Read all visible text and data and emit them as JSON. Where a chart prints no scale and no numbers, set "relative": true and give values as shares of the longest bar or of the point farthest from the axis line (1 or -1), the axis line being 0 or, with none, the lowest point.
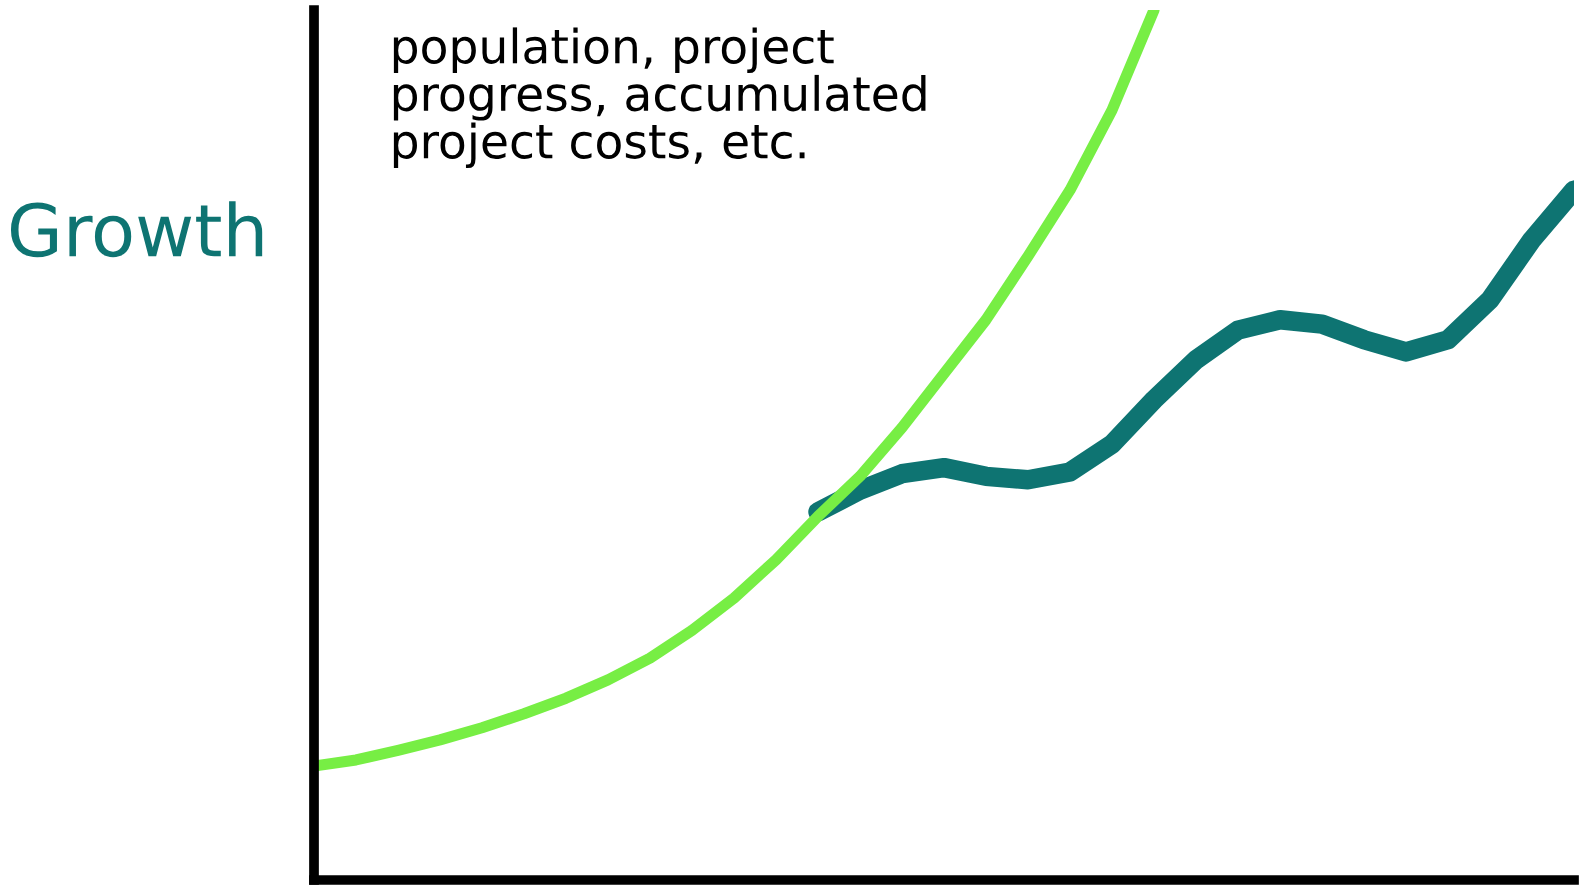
{
  "chart_data": {
    "type": "line",
    "relative": true,
    "ylabel": "Growth",
    "annotations": [
      "population, project\nprogress, accumulated\nproject costs, etc."
    ],
    "categories": [
      null,
      null,
      null,
      null,
      null,
      null,
      null,
      null,
      null,
      null,
      null,
      null,
      null,
      null,
      null,
      null,
      null,
      null,
      null,
      null,
      null,
      null,
      null,
      null,
      null,
      null,
      null,
      null,
      null,
      null,
      null
    ],
    "series": [
      {
        "color": "#0e7472",
        "values": [
          null,
          null,
          null,
          null,
          null,
          null,
          null,
          null,
          null,
          null,
          null,
          null,
          0.423,
          0.448,
          0.467,
          0.474,
          0.464,
          0.46,
          0.469,
          0.501,
          0.552,
          0.598,
          0.632,
          0.644,
          0.639,
          0.621,
          0.607,
          0.621,
          0.667,
          0.736,
          0.793
        ]
      },
      {
        "color": "#77ee44",
        "values": [
          0.131,
          0.138,
          0.149,
          0.161,
          0.175,
          0.191,
          0.209,
          0.23,
          0.255,
          0.287,
          0.324,
          0.368,
          0.418,
          0.464,
          0.52,
          0.582,
          0.644,
          0.717,
          0.793,
          0.885,
          1.0,
          null,
          null,
          null,
          null,
          null,
          null,
          null,
          null,
          null,
          null
        ]
      }
    ],
    "marker": "none",
    "line_style": "solid"
  }
}
